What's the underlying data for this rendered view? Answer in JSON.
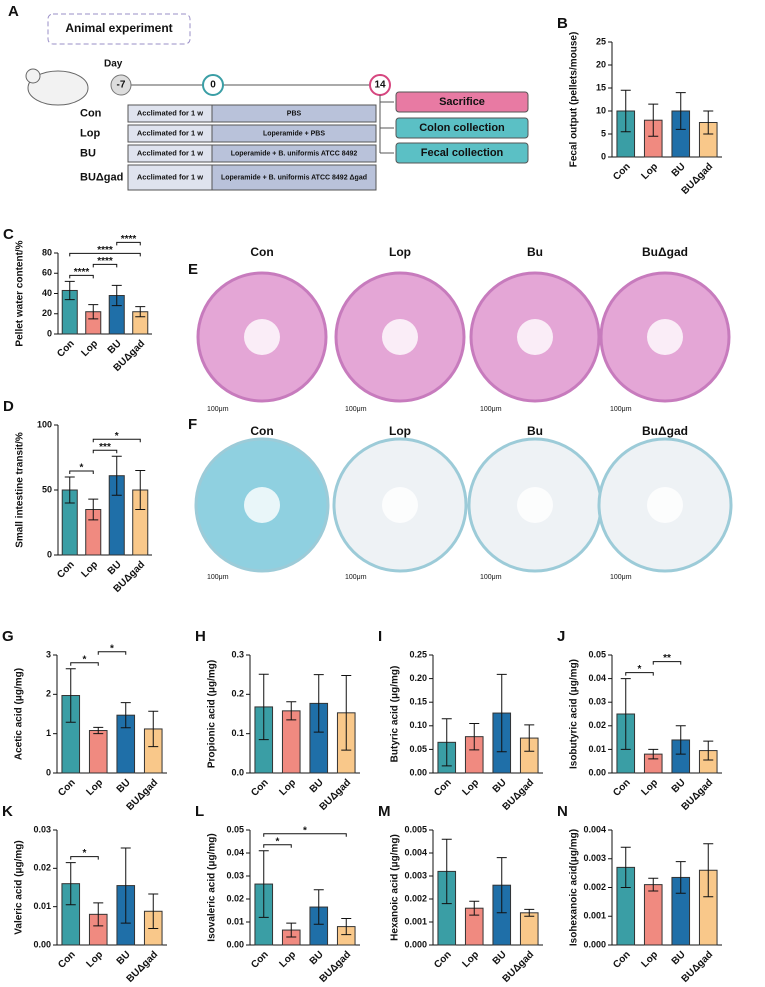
{
  "diagram": {
    "panel": "A",
    "title": "Animal experiment",
    "day_label": "Day",
    "days": [
      "-7",
      "0",
      "14"
    ],
    "groups": [
      {
        "name": "Con",
        "acclimation": "Acclimated for 1 w",
        "treatment": "PBS"
      },
      {
        "name": "Lop",
        "acclimation": "Acclimated for 1 w",
        "treatment": "Loperamide + PBS"
      },
      {
        "name": "BU",
        "acclimation": "Acclimated for 1 w",
        "treatment": "Loperamide + B. uniformis ATCC 8492"
      },
      {
        "name": "BUΔgad",
        "acclimation": "Acclimated for 1 w",
        "treatment": "Loperamide + B. uniformis ATCC 8492 Δgad"
      }
    ],
    "outcomes": [
      "Sacrifice",
      "Colon collection",
      "Fecal collection"
    ]
  },
  "images": [
    {
      "panel": "E",
      "titles": [
        "Con",
        "Lop",
        "Bu",
        "BuΔgad"
      ],
      "scale": [
        "100μm",
        "100μm",
        "100μm",
        "100μm"
      ]
    },
    {
      "panel": "F",
      "titles": [
        "Con",
        "Lop",
        "Bu",
        "BuΔgad"
      ],
      "scale": [
        "100μm",
        "100μm",
        "100μm",
        "100μm"
      ]
    }
  ],
  "chart_data": [
    {
      "type": "bar",
      "panel": "B",
      "ylabel": "Fecal output (pellets/mouse)",
      "categories": [
        "Con",
        "Lop",
        "BU",
        "BUΔgad"
      ],
      "colors": [
        "#3a9ea5",
        "#f08a80",
        "#1f6fa8",
        "#f9c88a"
      ],
      "values": [
        10,
        8,
        10,
        7.5
      ],
      "errors": [
        4.5,
        3.5,
        4,
        2.5
      ],
      "ylim": [
        0,
        25
      ],
      "yticks": [
        0,
        5,
        10,
        15,
        20,
        25
      ],
      "annotations": []
    },
    {
      "type": "bar",
      "panel": "C",
      "ylabel": "Pellet water content/%",
      "categories": [
        "Con",
        "Lop",
        "BU",
        "BUΔgad"
      ],
      "colors": [
        "#3a9ea5",
        "#f08a80",
        "#1f6fa8",
        "#f9c88a"
      ],
      "values": [
        43,
        22,
        38,
        22
      ],
      "errors": [
        9,
        7,
        10,
        5
      ],
      "ylim": [
        0,
        80
      ],
      "yticks": [
        0,
        20,
        40,
        60,
        80
      ],
      "annotations": [
        {
          "from": 0,
          "to": 1,
          "label": "****"
        },
        {
          "from": 1,
          "to": 2,
          "label": "****"
        },
        {
          "from": 0,
          "to": 3,
          "label": "****"
        },
        {
          "from": 2,
          "to": 3,
          "label": "****"
        }
      ]
    },
    {
      "type": "bar",
      "panel": "D",
      "ylabel": "Small intestine transit/%",
      "categories": [
        "Con",
        "Lop",
        "BU",
        "BUΔgad"
      ],
      "colors": [
        "#3a9ea5",
        "#f08a80",
        "#1f6fa8",
        "#f9c88a"
      ],
      "values": [
        50,
        35,
        61,
        50
      ],
      "errors": [
        10,
        8,
        15,
        15
      ],
      "ylim": [
        0,
        100
      ],
      "yticks": [
        0,
        50,
        100
      ],
      "annotations": [
        {
          "from": 0,
          "to": 1,
          "label": "*"
        },
        {
          "from": 1,
          "to": 2,
          "label": "***"
        },
        {
          "from": 1,
          "to": 3,
          "label": "*"
        }
      ]
    },
    {
      "type": "bar",
      "panel": "G",
      "ylabel": "Acetic acid (μg/mg)",
      "categories": [
        "Con",
        "Lop",
        "BU",
        "BUΔgad"
      ],
      "colors": [
        "#3a9ea5",
        "#f08a80",
        "#1f6fa8",
        "#f9c88a"
      ],
      "values": [
        1.97,
        1.08,
        1.47,
        1.12
      ],
      "errors": [
        0.68,
        0.08,
        0.32,
        0.45
      ],
      "ylim": [
        0,
        3
      ],
      "yticks": [
        0,
        1,
        2,
        3
      ],
      "annotations": [
        {
          "from": 0,
          "to": 1,
          "label": "*"
        },
        {
          "from": 1,
          "to": 2,
          "label": "*"
        }
      ]
    },
    {
      "type": "bar",
      "panel": "H",
      "ylabel": "Propionic acid (μg/mg)",
      "categories": [
        "Con",
        "Lop",
        "BU",
        "BUΔgad"
      ],
      "colors": [
        "#3a9ea5",
        "#f08a80",
        "#1f6fa8",
        "#f9c88a"
      ],
      "values": [
        0.168,
        0.158,
        0.177,
        0.153
      ],
      "errors": [
        0.083,
        0.023,
        0.073,
        0.095
      ],
      "ylim": [
        0,
        0.3
      ],
      "yticks": [
        {
          "value": 0,
          "label": "0.0"
        },
        0.1,
        0.2,
        0.3
      ],
      "annotations": []
    },
    {
      "type": "bar",
      "panel": "I",
      "ylabel": "Butyric acid (μg/mg)",
      "categories": [
        "Con",
        "Lop",
        "BU",
        "BUΔgad"
      ],
      "colors": [
        "#3a9ea5",
        "#f08a80",
        "#1f6fa8",
        "#f9c88a"
      ],
      "values": [
        0.065,
        0.077,
        0.127,
        0.074
      ],
      "errors": [
        0.05,
        0.028,
        0.082,
        0.028
      ],
      "ylim": [
        0,
        0.25
      ],
      "yticks": [
        {
          "value": 0,
          "label": "0.00"
        },
        0.05,
        {
          "value": 0.1,
          "label": "0.10"
        },
        0.15,
        {
          "value": 0.2,
          "label": "0.20"
        },
        0.25
      ],
      "annotations": []
    },
    {
      "type": "bar",
      "panel": "J",
      "ylabel": "Isobutyric acid (μg/mg)",
      "categories": [
        "Con",
        "Lop",
        "BU",
        "BUΔgad"
      ],
      "colors": [
        "#3a9ea5",
        "#f08a80",
        "#1f6fa8",
        "#f9c88a"
      ],
      "values": [
        0.025,
        0.008,
        0.014,
        0.0095
      ],
      "errors": [
        0.015,
        0.002,
        0.006,
        0.004
      ],
      "ylim": [
        0,
        0.05
      ],
      "yticks": [
        {
          "value": 0,
          "label": "0.00"
        },
        0.01,
        0.02,
        0.03,
        0.04,
        0.05
      ],
      "annotations": [
        {
          "from": 0,
          "to": 1,
          "label": "*"
        },
        {
          "from": 1,
          "to": 2,
          "label": "**"
        }
      ]
    },
    {
      "type": "bar",
      "panel": "K",
      "ylabel": "Valeric acid (μg/mg)",
      "categories": [
        "Con",
        "Lop",
        "BU",
        "BUΔgad"
      ],
      "colors": [
        "#3a9ea5",
        "#f08a80",
        "#1f6fa8",
        "#f9c88a"
      ],
      "values": [
        0.016,
        0.008,
        0.0155,
        0.0088
      ],
      "errors": [
        0.0055,
        0.003,
        0.0098,
        0.0045
      ],
      "ylim": [
        0,
        0.03
      ],
      "yticks": [
        {
          "value": 0,
          "label": "0.00"
        },
        0.01,
        0.02,
        0.03
      ],
      "annotations": [
        {
          "from": 0,
          "to": 1,
          "label": "*"
        }
      ]
    },
    {
      "type": "bar",
      "panel": "L",
      "ylabel": "Isovaleric acid (μg/mg)",
      "categories": [
        "Con",
        "Lop",
        "BU",
        "BUΔgad"
      ],
      "colors": [
        "#3a9ea5",
        "#f08a80",
        "#1f6fa8",
        "#f9c88a"
      ],
      "values": [
        0.0265,
        0.0065,
        0.0165,
        0.008
      ],
      "errors": [
        0.0145,
        0.003,
        0.0075,
        0.0035
      ],
      "ylim": [
        0,
        0.05
      ],
      "yticks": [
        {
          "value": 0,
          "label": "0.00"
        },
        0.01,
        0.02,
        0.03,
        0.04,
        0.05
      ],
      "annotations": [
        {
          "from": 0,
          "to": 1,
          "label": "*"
        },
        {
          "from": 0,
          "to": 3,
          "label": "*"
        }
      ]
    },
    {
      "type": "bar",
      "panel": "M",
      "ylabel": "Hexanoic acid (μg/mg)",
      "categories": [
        "Con",
        "Lop",
        "BU",
        "BUΔgad"
      ],
      "colors": [
        "#3a9ea5",
        "#f08a80",
        "#1f6fa8",
        "#f9c88a"
      ],
      "values": [
        0.0032,
        0.0016,
        0.0026,
        0.0014
      ],
      "errors": [
        0.0014,
        0.0003,
        0.0012,
        0.00015
      ],
      "ylim": [
        0,
        0.005
      ],
      "yticks": [
        {
          "value": 0,
          "label": "0.000"
        },
        0.001,
        0.002,
        0.003,
        0.004,
        0.005
      ],
      "annotations": []
    },
    {
      "type": "bar",
      "panel": "N",
      "ylabel": "Isohexanoic acid(μg/mg)",
      "categories": [
        "Con",
        "Lop",
        "BU",
        "BUΔgad"
      ],
      "colors": [
        "#3a9ea5",
        "#f08a80",
        "#1f6fa8",
        "#f9c88a"
      ],
      "values": [
        0.0027,
        0.0021,
        0.00235,
        0.0026
      ],
      "errors": [
        0.0007,
        0.00022,
        0.00055,
        0.00092
      ],
      "ylim": [
        0,
        0.004
      ],
      "yticks": [
        {
          "value": 0,
          "label": "0.000"
        },
        0.001,
        0.002,
        0.003,
        0.004
      ],
      "annotations": []
    }
  ]
}
